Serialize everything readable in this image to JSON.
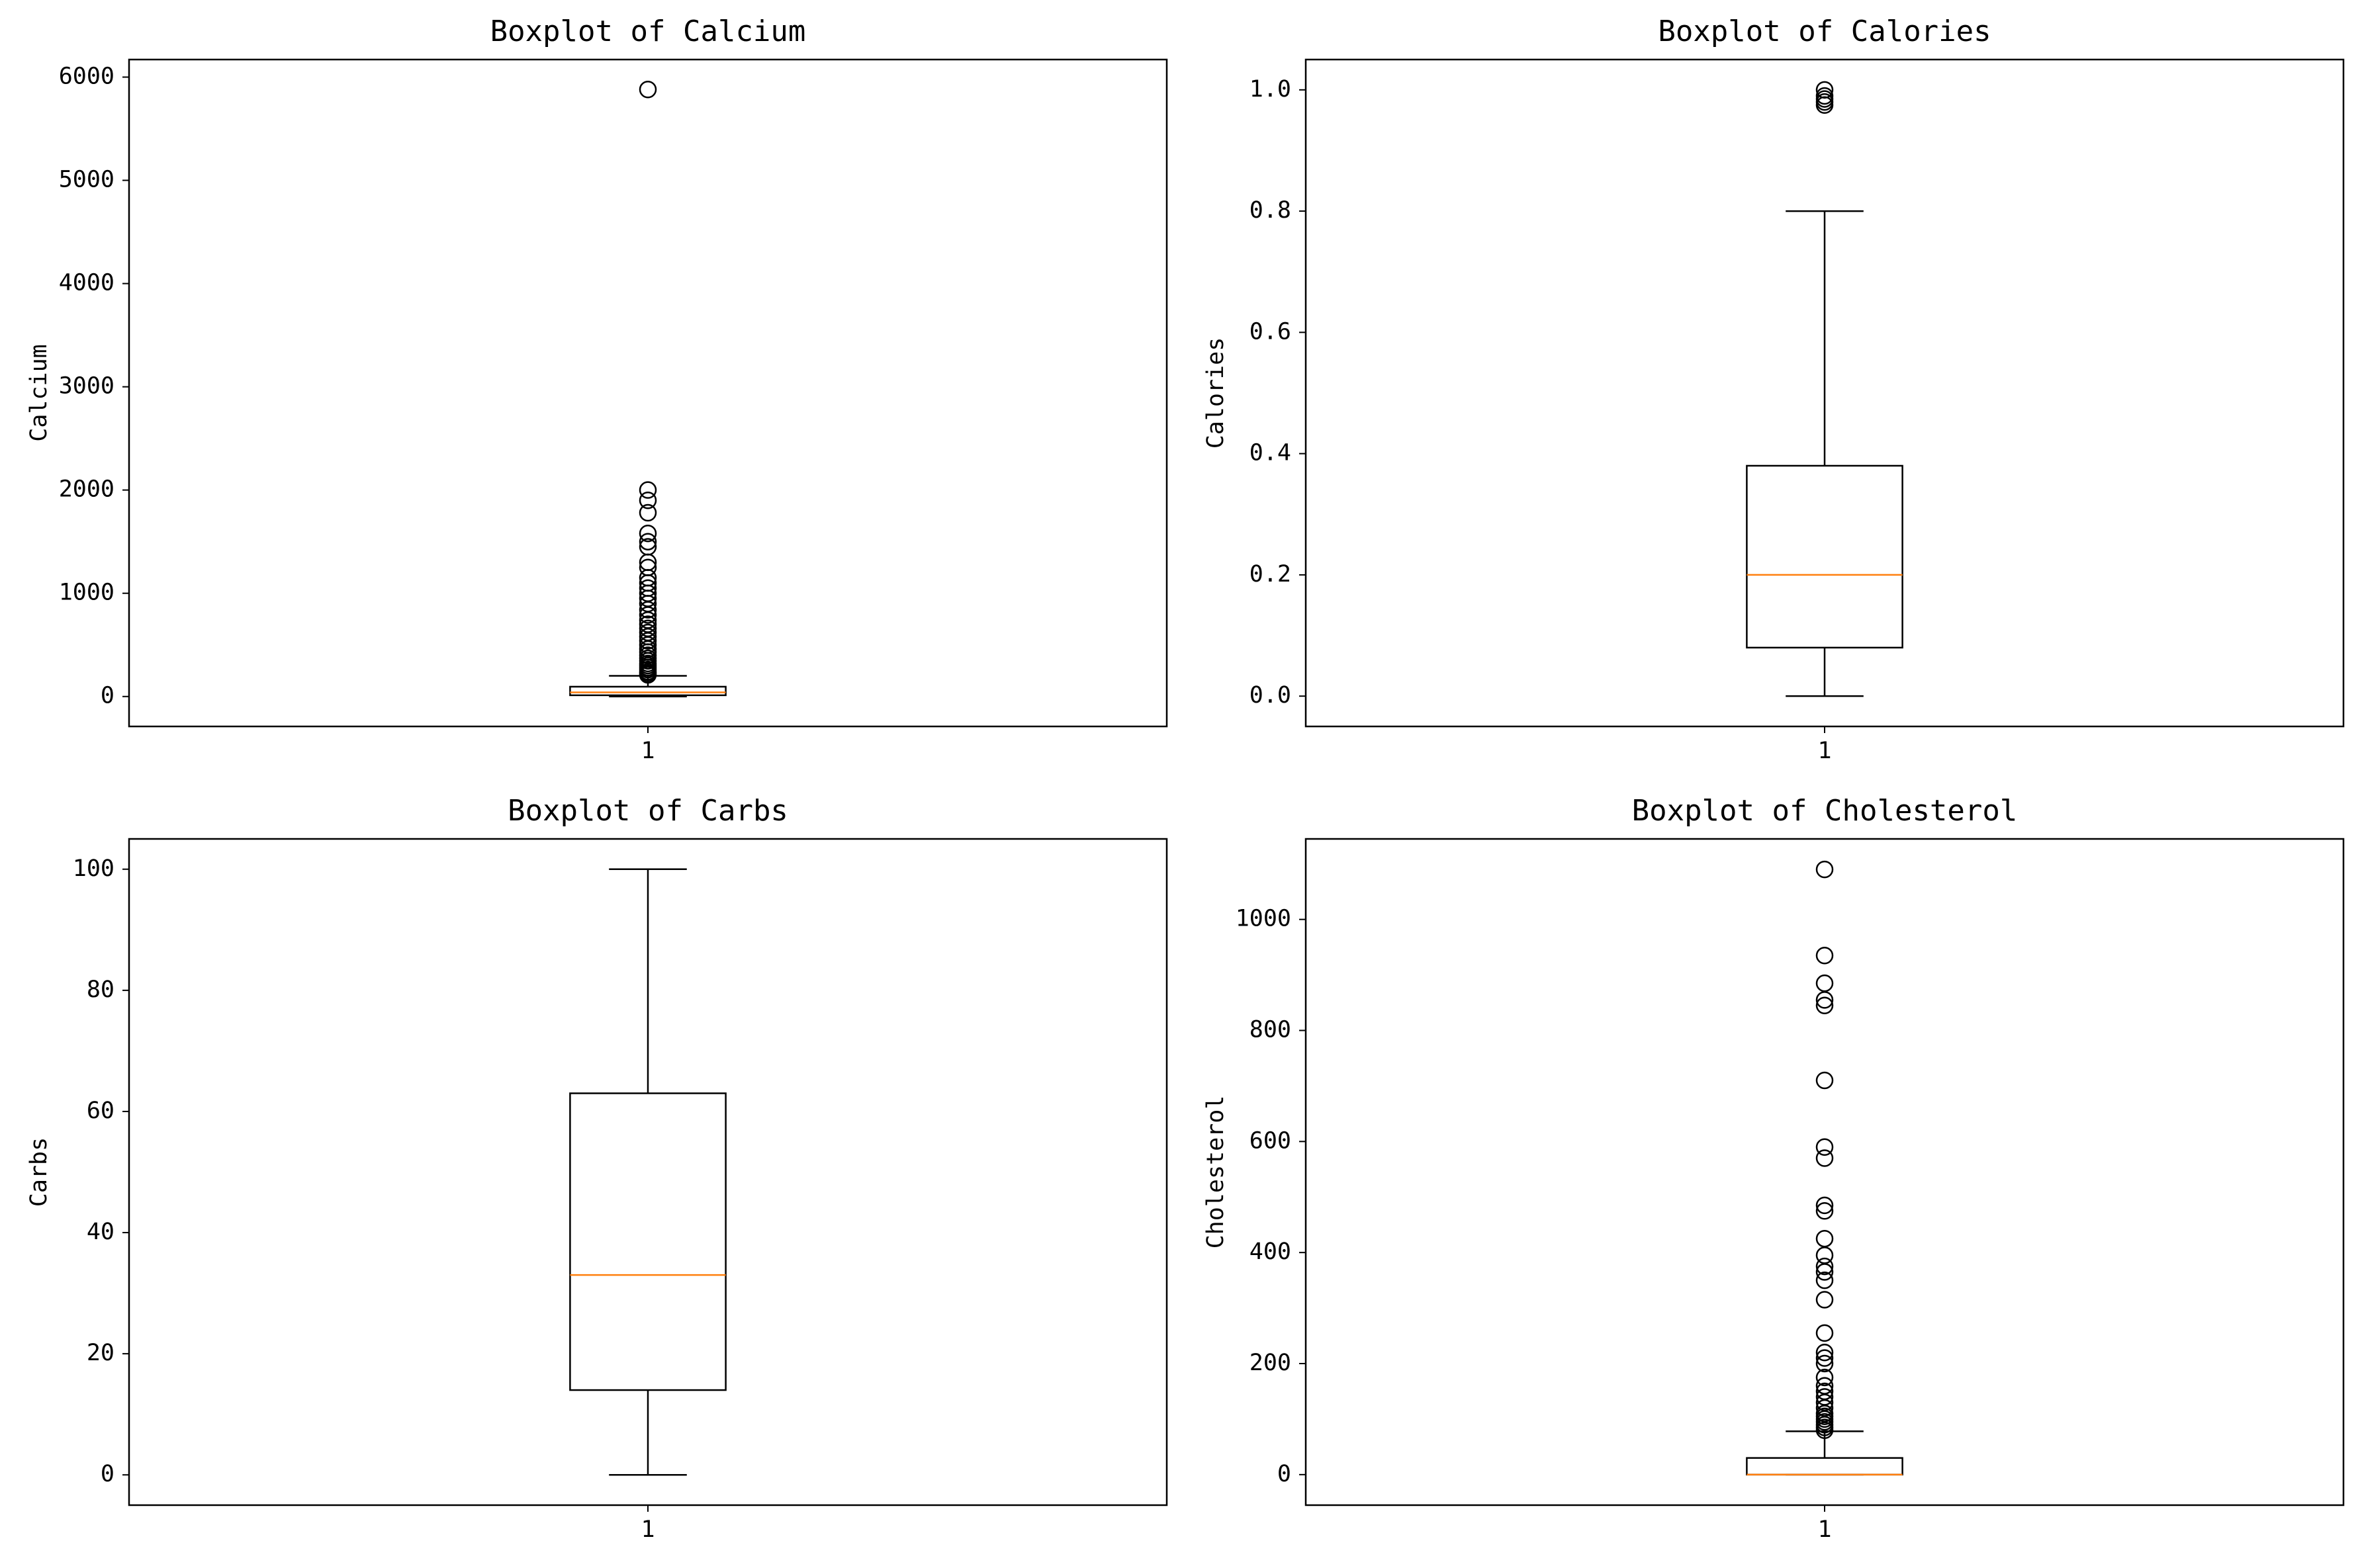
{
  "chart_data": [
    {
      "type": "boxplot",
      "title": "Boxplot of Calcium",
      "ylabel": "Calcium",
      "xlabel": "",
      "x_ticks": [
        "1"
      ],
      "ylim": [
        -290,
        6170
      ],
      "y_ticks": [
        0,
        1000,
        2000,
        3000,
        4000,
        5000,
        6000
      ],
      "box": {
        "whisker_low": 0,
        "q1": 12,
        "median": 40,
        "q3": 95,
        "whisker_high": 200
      },
      "outliers": [
        210,
        225,
        240,
        260,
        280,
        300,
        320,
        345,
        370,
        400,
        430,
        460,
        500,
        540,
        580,
        620,
        660,
        700,
        740,
        790,
        840,
        900,
        950,
        1000,
        1050,
        1100,
        1150,
        1250,
        1300,
        1450,
        1500,
        1580,
        1780,
        1900,
        2000,
        5880
      ]
    },
    {
      "type": "boxplot",
      "title": "Boxplot of Calories",
      "ylabel": "Calories",
      "xlabel": "",
      "x_ticks": [
        "1"
      ],
      "ylim": [
        -0.05,
        1.05
      ],
      "y_ticks": [
        "0.0",
        "0.2",
        "0.4",
        "0.6",
        "0.8",
        "1.0"
      ],
      "box": {
        "whisker_low": 0.0,
        "q1": 0.08,
        "median": 0.2,
        "q3": 0.38,
        "whisker_high": 0.8
      },
      "outliers": [
        0.975,
        0.98,
        0.985,
        0.99,
        1.0
      ]
    },
    {
      "type": "boxplot",
      "title": "Boxplot of Carbs",
      "ylabel": "Carbs",
      "xlabel": "",
      "x_ticks": [
        "1"
      ],
      "ylim": [
        -5,
        105
      ],
      "y_ticks": [
        0,
        20,
        40,
        60,
        80,
        100
      ],
      "box": {
        "whisker_low": 0,
        "q1": 14,
        "median": 33,
        "q3": 63,
        "whisker_high": 100
      },
      "outliers": []
    },
    {
      "type": "boxplot",
      "title": "Boxplot of Cholesterol",
      "ylabel": "Cholesterol",
      "xlabel": "",
      "x_ticks": [
        "1"
      ],
      "ylim": [
        -55,
        1145
      ],
      "y_ticks": [
        0,
        200,
        400,
        600,
        800,
        1000
      ],
      "box": {
        "whisker_low": 0,
        "q1": 0,
        "median": 0,
        "q3": 30,
        "whisker_high": 78
      },
      "outliers": [
        80,
        85,
        90,
        95,
        100,
        105,
        110,
        120,
        130,
        140,
        150,
        160,
        175,
        200,
        210,
        220,
        255,
        315,
        350,
        365,
        375,
        395,
        425,
        475,
        485,
        570,
        590,
        710,
        845,
        855,
        885,
        935,
        1090
      ]
    }
  ]
}
